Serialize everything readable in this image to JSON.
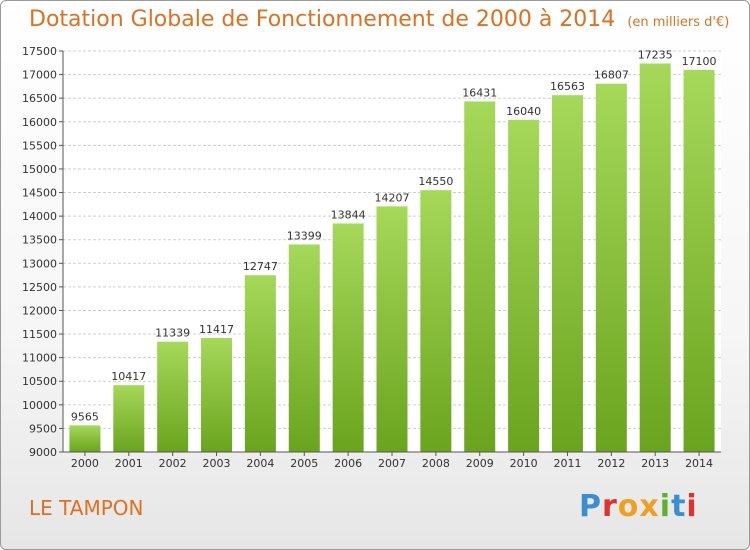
{
  "title": "Dotation Globale de Fonctionnement de 2000 à 2014",
  "unit_label": "(en milliers d'€)",
  "commune": "LE TAMPON",
  "logo": {
    "text": "Proxiti",
    "colors": [
      "#3a8fd0",
      "#e03030",
      "#f0a020",
      "#f0a020",
      "#60b030",
      "#3a8fd0",
      "#e03030"
    ]
  },
  "colors": {
    "bar_top": "#a6d85a",
    "bar_bottom": "#6aa41e",
    "accent": "#e07020"
  },
  "chart_data": {
    "type": "bar",
    "categories": [
      "2000",
      "2001",
      "2002",
      "2003",
      "2004",
      "2005",
      "2006",
      "2007",
      "2008",
      "2009",
      "2010",
      "2011",
      "2012",
      "2013",
      "2014"
    ],
    "values": [
      9565,
      10417,
      11339,
      11417,
      12747,
      13399,
      13844,
      14207,
      14550,
      16431,
      16040,
      16563,
      16807,
      17235,
      17100
    ],
    "value_labels": [
      "9565",
      "10417",
      "11339",
      "11417",
      "12747",
      "13399",
      "13844",
      "14207",
      "14550",
      "16431",
      "16040",
      "16563",
      "16807",
      "17235",
      "17100"
    ],
    "ylim": [
      9000,
      17500
    ],
    "yticks": [
      9000,
      9500,
      10000,
      10500,
      11000,
      11500,
      12000,
      12500,
      13000,
      13500,
      14000,
      14500,
      15000,
      15500,
      16000,
      16500,
      17000,
      17500
    ],
    "ytick_labels": [
      "9000",
      "9500",
      "10000",
      "10500",
      "11000",
      "11500",
      "12000",
      "12500",
      "13000",
      "13500",
      "14000",
      "14500",
      "15000",
      "15500",
      "16000",
      "16500",
      "17000",
      "17500"
    ],
    "grid": true,
    "xlabel": "",
    "ylabel": ""
  }
}
